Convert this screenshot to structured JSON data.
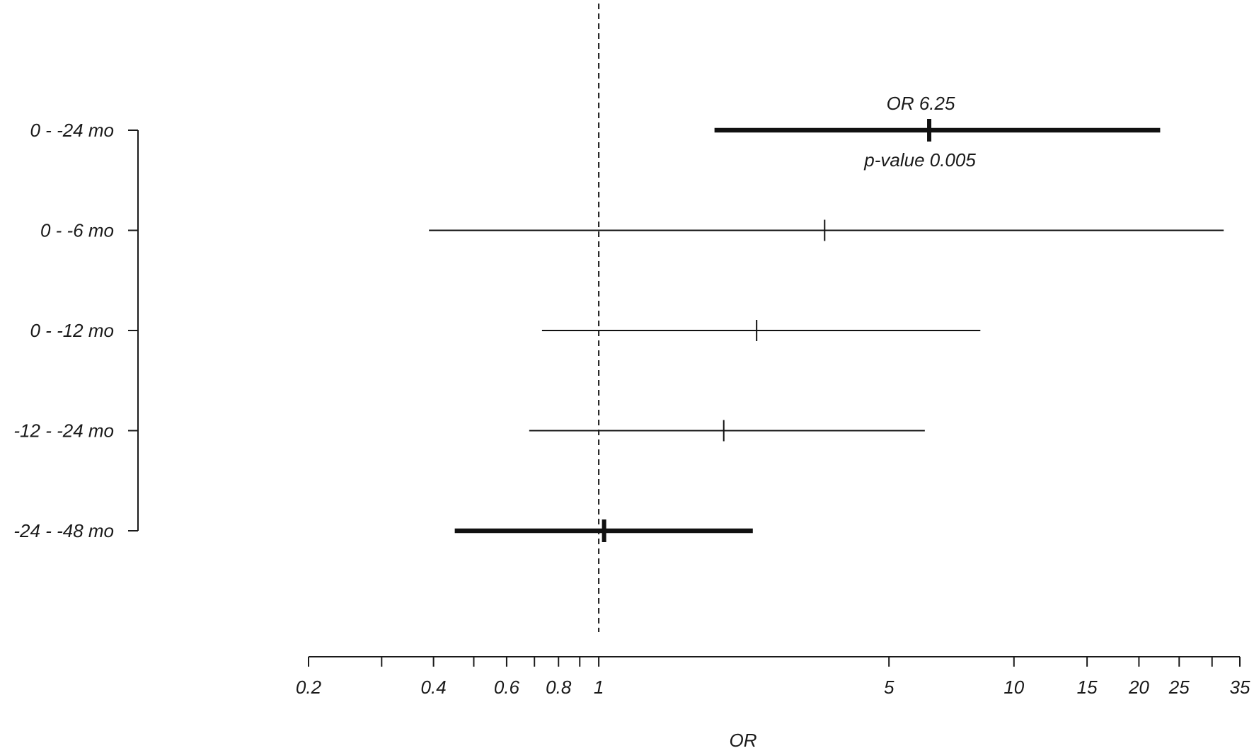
{
  "chart_data": {
    "type": "forest",
    "xlabel": "OR",
    "xscale": "log",
    "xlim": [
      0.2,
      35
    ],
    "reference_line": 1,
    "x_ticks": [
      0.2,
      0.3,
      0.4,
      0.5,
      0.6,
      0.7,
      0.8,
      0.9,
      1,
      5,
      10,
      15,
      20,
      25,
      30,
      35
    ],
    "x_tick_labels": [
      {
        "value": 0.2,
        "label": "0.2"
      },
      {
        "value": 0.4,
        "label": "0.4"
      },
      {
        "value": 0.6,
        "label": "0.6"
      },
      {
        "value": 0.8,
        "label": "0.8"
      },
      {
        "value": 1,
        "label": "1"
      },
      {
        "value": 5,
        "label": "5"
      },
      {
        "value": 10,
        "label": "10"
      },
      {
        "value": 15,
        "label": "15"
      },
      {
        "value": 20,
        "label": "20"
      },
      {
        "value": 25,
        "label": "25"
      },
      {
        "value": 35,
        "label": "35"
      }
    ],
    "rows": [
      {
        "label": "0 - -24 mo",
        "or": 6.25,
        "ci_low": 1.9,
        "ci_high": 22.5,
        "bold": true,
        "annotation_top": "OR 6.25",
        "annotation_bottom": "p-value 0.005"
      },
      {
        "label": "0 - -6 mo",
        "or": 3.5,
        "ci_low": 0.39,
        "ci_high": 32,
        "bold": false
      },
      {
        "label": "0 - -12 mo",
        "or": 2.4,
        "ci_low": 0.73,
        "ci_high": 8.3,
        "bold": false
      },
      {
        "label": "-12 - -24 mo",
        "or": 2.0,
        "ci_low": 0.68,
        "ci_high": 6.1,
        "bold": false
      },
      {
        "label": "-24 - -48 mo",
        "or": 1.03,
        "ci_low": 0.45,
        "ci_high": 2.35,
        "bold": true
      }
    ]
  }
}
